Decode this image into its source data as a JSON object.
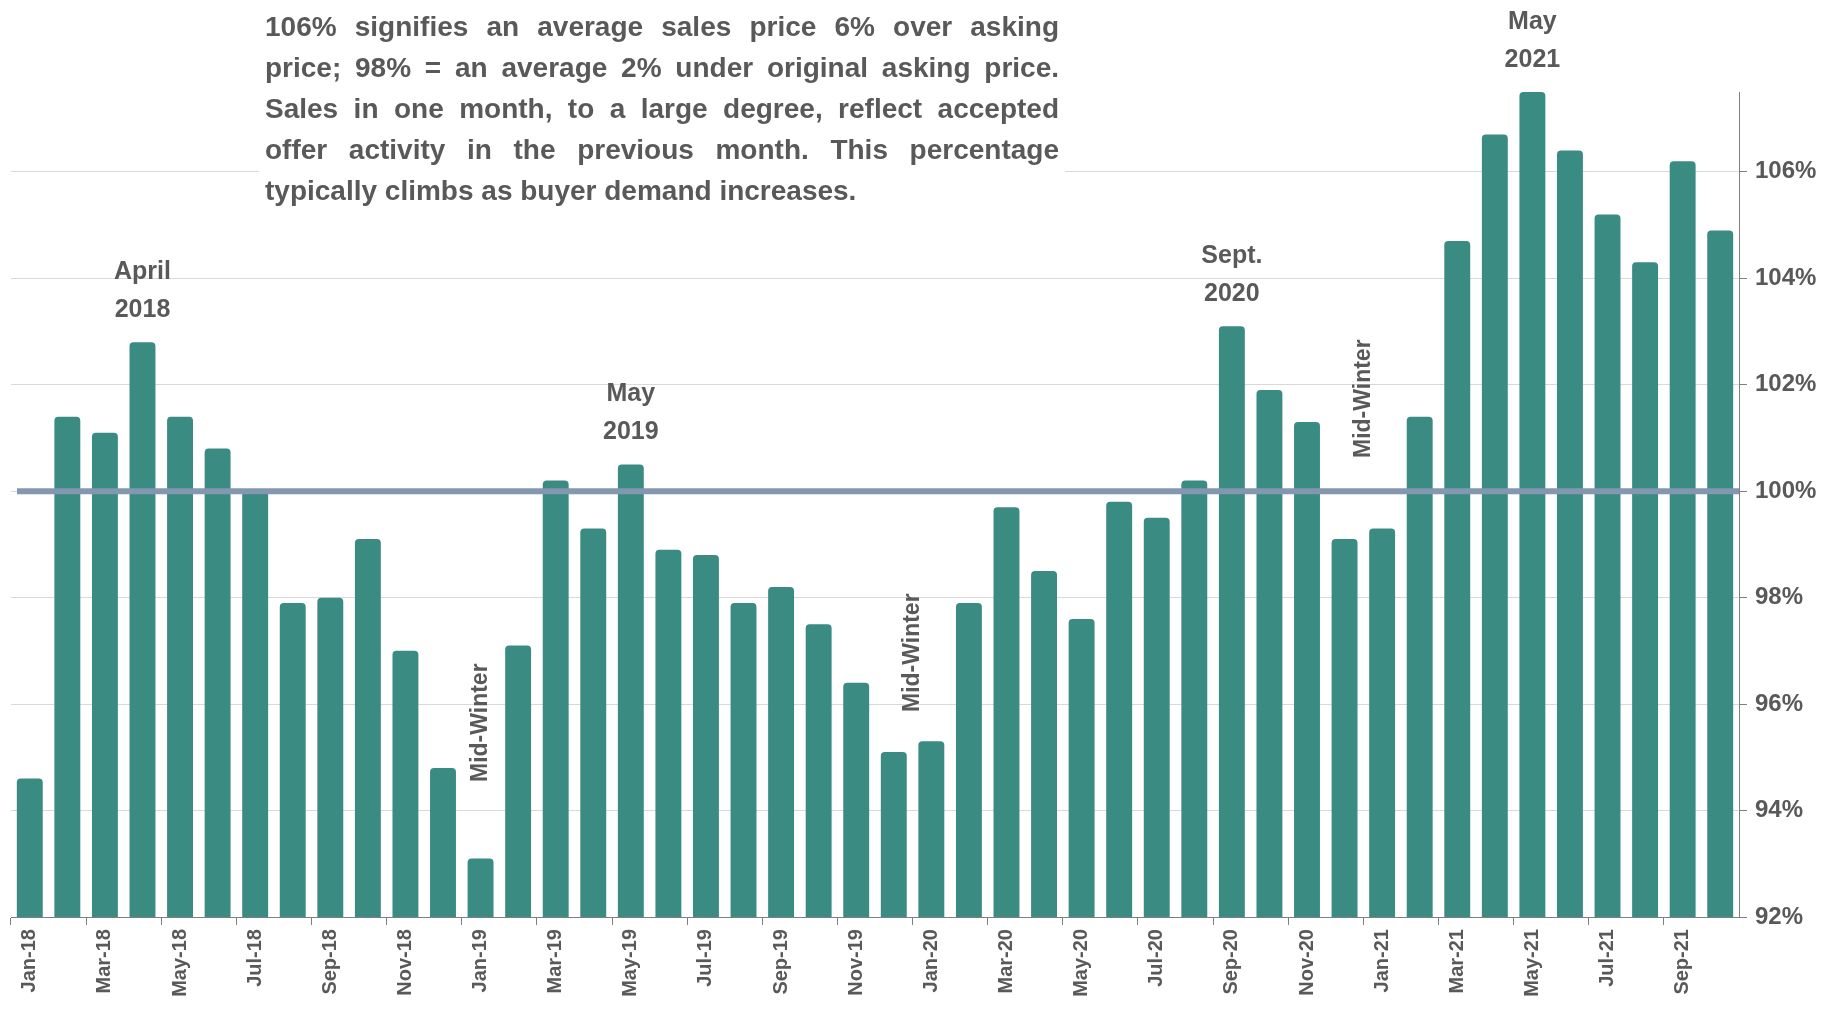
{
  "chart_data": {
    "type": "bar",
    "categories": [
      "Jan-18",
      null,
      "Mar-18",
      null,
      "May-18",
      null,
      "Jul-18",
      null,
      "Sep-18",
      null,
      "Nov-18",
      null,
      "Jan-19",
      null,
      "Mar-19",
      null,
      "May-19",
      null,
      "Jul-19",
      null,
      "Sep-19",
      null,
      "Nov-19",
      null,
      "Jan-20",
      null,
      "Mar-20",
      null,
      "May-20",
      null,
      "Jul-20",
      null,
      "Sep-20",
      null,
      "Nov-20",
      null,
      "Jan-21",
      null,
      "Mar-21",
      null,
      "May-21",
      null,
      "Jul-21",
      null,
      "Sep-21",
      null
    ],
    "values": [
      94.6,
      101.4,
      101.1,
      102.8,
      101.4,
      100.8,
      100.0,
      97.9,
      98.0,
      99.1,
      97.0,
      94.8,
      93.1,
      97.1,
      100.2,
      99.3,
      100.5,
      98.9,
      98.8,
      97.9,
      98.2,
      97.5,
      96.4,
      95.1,
      95.3,
      97.9,
      99.7,
      98.5,
      97.6,
      99.8,
      99.5,
      100.2,
      103.1,
      101.9,
      101.3,
      99.1,
      99.3,
      101.4,
      104.7,
      106.7,
      107.5,
      106.4,
      105.2,
      104.3,
      106.2,
      104.9
    ],
    "color": "#3a8b82",
    "ylim": [
      92,
      107.5
    ],
    "yticks": [
      {
        "value": 92,
        "label": "92%"
      },
      {
        "value": 94,
        "label": "94%"
      },
      {
        "value": 96,
        "label": "96%"
      },
      {
        "value": 98,
        "label": "98%"
      },
      {
        "value": 100,
        "label": "100%"
      },
      {
        "value": 102,
        "label": "102%"
      },
      {
        "value": 104,
        "label": "104%"
      },
      {
        "value": 106,
        "label": "106%"
      }
    ],
    "grid": "y",
    "ref_lines": [
      {
        "axis": "y",
        "value": 100,
        "color": "#8497b0"
      }
    ],
    "annotations": [
      "106% signifies an average sales price 6% over asking price; 98% = an average 2% under original asking price. Sales in one month, to a large degree, reflect accepted offer activity in the previous month. This percentage typically climbs as buyer demand increases.",
      "April\n2018",
      "May\n2019",
      "Sept.\n2020",
      "May\n2021",
      "Mid-Winter",
      "Mid-Winter",
      "Mid-Winter"
    ]
  }
}
